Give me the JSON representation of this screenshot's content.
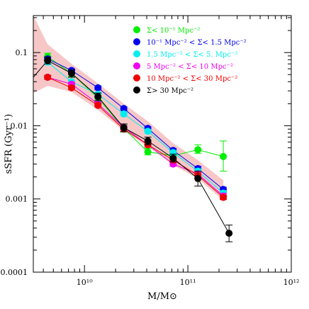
{
  "chart_data": {
    "type": "line",
    "xscale": "log",
    "yscale": "log",
    "xlim": [
      3200000000.0,
      1000000000000.0
    ],
    "ylim": [
      0.0001,
      0.32
    ],
    "xlabel": "M/M⊙",
    "ylabel": "sSFR (Gyr⁻¹)",
    "x_tick_labels": [
      {
        "value": 10000000000.0,
        "label": "10¹⁰"
      },
      {
        "value": 100000000000.0,
        "label": "10¹¹"
      },
      {
        "value": 1000000000000.0,
        "label": "10¹²"
      }
    ],
    "y_tick_labels": [
      {
        "value": 0.0001,
        "label": "0.0001"
      },
      {
        "value": 0.001,
        "label": "0.001"
      },
      {
        "value": 0.01,
        "label": "0.01"
      },
      {
        "value": 0.1,
        "label": "0.1"
      }
    ],
    "grid": false,
    "legend_position": "top-right",
    "series": [
      {
        "name": "Σ< 10⁻¹ Mpc⁻²",
        "color": "#00ee00",
        "x": [
          4400000000.0,
          7500000000.0,
          13500000000.0,
          24000000000.0,
          41000000000.0,
          72000000000.0,
          125000000000.0,
          220000000000.0
        ],
        "y": [
          0.088,
          0.052,
          0.024,
          0.0092,
          0.0044,
          0.0039,
          0.0047,
          0.0038
        ],
        "yerr_low": [
          0.079,
          0.047,
          0.0215,
          0.0082,
          0.004,
          0.0035,
          0.0042,
          0.0024
        ],
        "yerr_high": [
          0.098,
          0.058,
          0.027,
          0.0103,
          0.0049,
          0.0044,
          0.0055,
          0.0062
        ]
      },
      {
        "name": "10⁻¹ Mpc⁻² < Σ< 1.5 Mpc⁻²",
        "color": "#0000ee",
        "x": [
          4400000000.0,
          7500000000.0,
          13500000000.0,
          24000000000.0,
          41000000000.0,
          72000000000.0,
          125000000000.0,
          220000000000.0
        ],
        "y": [
          0.082,
          0.057,
          0.033,
          0.0172,
          0.0092,
          0.0046,
          0.0026,
          0.00135
        ],
        "yerr_low": [
          0.078,
          0.054,
          0.031,
          0.0163,
          0.0087,
          0.0043,
          0.0024,
          0.00125
        ],
        "yerr_high": [
          0.086,
          0.06,
          0.035,
          0.0181,
          0.0097,
          0.0049,
          0.0028,
          0.00145
        ]
      },
      {
        "name": "1.5 Mpc⁻² < Σ< 5. Mpc⁻²",
        "color": "#00eeee",
        "x": [
          4400000000.0,
          7500000000.0,
          13500000000.0,
          24000000000.0,
          41000000000.0,
          72000000000.0,
          125000000000.0,
          220000000000.0
        ],
        "y": [
          0.074,
          0.04,
          0.027,
          0.0145,
          0.0084,
          0.0043,
          0.0024,
          0.0012
        ],
        "yerr_low": [
          0.07,
          0.038,
          0.0255,
          0.0137,
          0.0079,
          0.004,
          0.0022,
          0.0011
        ],
        "yerr_high": [
          0.078,
          0.042,
          0.0285,
          0.0153,
          0.0089,
          0.0046,
          0.0026,
          0.0013
        ]
      },
      {
        "name": "5 Mpc⁻² < Σ< 10 Mpc⁻²",
        "color": "#ee00ee",
        "x": [
          4400000000.0,
          7500000000.0,
          13500000000.0,
          24000000000.0,
          41000000000.0,
          72000000000.0,
          125000000000.0,
          220000000000.0
        ],
        "y": [
          0.046,
          0.037,
          0.02,
          0.0095,
          0.0055,
          0.003,
          0.0022,
          0.0011
        ],
        "yerr_low": [
          0.043,
          0.035,
          0.019,
          0.0089,
          0.0051,
          0.0028,
          0.002,
          0.001
        ],
        "yerr_high": [
          0.049,
          0.039,
          0.021,
          0.0101,
          0.0059,
          0.0032,
          0.0024,
          0.0012
        ]
      },
      {
        "name": "10 Mpc⁻² < Σ< 30 Mpc⁻²",
        "color": "#ee0000",
        "x": [
          4400000000.0,
          7500000000.0,
          13500000000.0,
          24000000000.0,
          41000000000.0,
          72000000000.0,
          125000000000.0,
          220000000000.0
        ],
        "y": [
          0.046,
          0.033,
          0.019,
          0.009,
          0.0055,
          0.0034,
          0.0021,
          0.00105
        ],
        "yerr_low": [
          0.043,
          0.031,
          0.018,
          0.0084,
          0.0051,
          0.0032,
          0.0019,
          0.00098
        ],
        "yerr_high": [
          0.049,
          0.035,
          0.02,
          0.0096,
          0.0059,
          0.0036,
          0.0023,
          0.00112
        ]
      },
      {
        "name": "Σ> 30 Mpc⁻²",
        "color": "#000000",
        "x": [
          4400000000.0,
          7500000000.0,
          13500000000.0,
          24000000000.0,
          41000000000.0,
          72000000000.0,
          125000000000.0,
          250000000000.0
        ],
        "y": [
          0.078,
          0.052,
          0.025,
          0.0094,
          0.0062,
          0.0036,
          0.0019,
          0.00034
        ],
        "yerr_low": [
          0.07,
          0.046,
          0.022,
          0.0083,
          0.0055,
          0.0032,
          0.0015,
          0.00026
        ],
        "yerr_high": [
          0.087,
          0.058,
          0.028,
          0.0106,
          0.007,
          0.0041,
          0.0024,
          0.00044
        ]
      }
    ],
    "shaded_band": {
      "color": "#f7c7c7",
      "x": [
        3200000000.0,
        4400000000.0,
        7500000000.0,
        13500000000.0,
        24000000000.0,
        41000000000.0,
        72000000000.0,
        125000000000.0,
        220000000000.0
      ],
      "y_low": [
        0.028,
        0.035,
        0.029,
        0.0165,
        0.0085,
        0.0052,
        0.0029,
        0.0019,
        0.00095
      ],
      "y_high": [
        0.32,
        0.13,
        0.07,
        0.038,
        0.02,
        0.0115,
        0.0058,
        0.0034,
        0.0018
      ]
    },
    "extra_line": {
      "color": "#000000",
      "x": [
        3200000000.0,
        4400000000.0
      ],
      "y": [
        0.046,
        0.078
      ]
    }
  }
}
